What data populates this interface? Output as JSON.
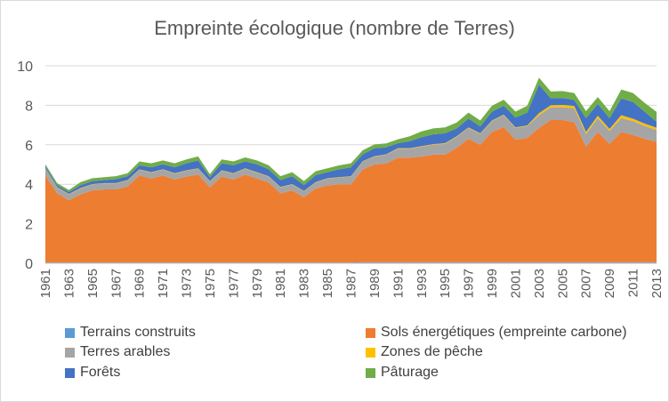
{
  "chart_data": {
    "type": "area",
    "stacked": true,
    "title": "Empreinte écologique (nombre de Terres)",
    "xlabel": "",
    "ylabel": "",
    "ylim": [
      0,
      10
    ],
    "yticks": [
      "0",
      "2",
      "4",
      "6",
      "8",
      "10"
    ],
    "grid": true,
    "legend_position": "bottom",
    "x": [
      1961,
      1962,
      1963,
      1964,
      1965,
      1966,
      1967,
      1968,
      1969,
      1970,
      1971,
      1972,
      1973,
      1974,
      1975,
      1976,
      1977,
      1978,
      1979,
      1980,
      1981,
      1982,
      1983,
      1984,
      1985,
      1986,
      1987,
      1988,
      1989,
      1990,
      1991,
      1992,
      1993,
      1994,
      1995,
      1996,
      1997,
      1998,
      1999,
      2000,
      2001,
      2002,
      2003,
      2004,
      2005,
      2006,
      2007,
      2008,
      2009,
      2010,
      2011,
      2012,
      2013
    ],
    "xtick_labels": [
      "1961",
      "1963",
      "1965",
      "1967",
      "1969",
      "1971",
      "1973",
      "1975",
      "1977",
      "1979",
      "1981",
      "1983",
      "1985",
      "1987",
      "1989",
      "1991",
      "1993",
      "1995",
      "1997",
      "1999",
      "2001",
      "2003",
      "2005",
      "2007",
      "2009",
      "2011",
      "2013"
    ],
    "series": [
      {
        "name": "Terrains construits",
        "color": "#5b9bd5",
        "values": [
          0.04,
          0.04,
          0.04,
          0.04,
          0.04,
          0.04,
          0.04,
          0.04,
          0.04,
          0.04,
          0.04,
          0.04,
          0.04,
          0.04,
          0.04,
          0.04,
          0.04,
          0.04,
          0.04,
          0.04,
          0.04,
          0.04,
          0.04,
          0.04,
          0.04,
          0.04,
          0.04,
          0.05,
          0.05,
          0.05,
          0.05,
          0.05,
          0.05,
          0.05,
          0.05,
          0.05,
          0.05,
          0.05,
          0.05,
          0.05,
          0.05,
          0.05,
          0.05,
          0.05,
          0.05,
          0.05,
          0.05,
          0.05,
          0.05,
          0.05,
          0.05,
          0.05,
          0.05
        ]
      },
      {
        "name": "Sols énergétiques (empreinte carbone)",
        "color": "#ed7d31",
        "values": [
          4.4,
          3.5,
          3.15,
          3.45,
          3.65,
          3.7,
          3.7,
          3.85,
          4.4,
          4.25,
          4.4,
          4.2,
          4.35,
          4.45,
          3.8,
          4.35,
          4.2,
          4.45,
          4.25,
          4.05,
          3.5,
          3.65,
          3.3,
          3.75,
          3.9,
          3.95,
          3.95,
          4.7,
          4.95,
          5.0,
          5.3,
          5.3,
          5.35,
          5.45,
          5.45,
          5.8,
          6.25,
          5.95,
          6.6,
          6.85,
          6.2,
          6.3,
          6.8,
          7.2,
          7.2,
          7.1,
          5.85,
          6.6,
          6.0,
          6.6,
          6.45,
          6.25,
          6.1
        ]
      },
      {
        "name": "Terres arables",
        "color": "#a5a5a5",
        "values": [
          0.35,
          0.3,
          0.3,
          0.3,
          0.3,
          0.3,
          0.3,
          0.3,
          0.3,
          0.3,
          0.3,
          0.3,
          0.3,
          0.3,
          0.3,
          0.3,
          0.3,
          0.3,
          0.3,
          0.3,
          0.3,
          0.3,
          0.3,
          0.3,
          0.35,
          0.35,
          0.4,
          0.4,
          0.4,
          0.45,
          0.45,
          0.45,
          0.5,
          0.5,
          0.55,
          0.55,
          0.55,
          0.55,
          0.55,
          0.6,
          0.6,
          0.6,
          0.65,
          0.65,
          0.65,
          0.7,
          0.65,
          0.7,
          0.65,
          0.7,
          0.7,
          0.65,
          0.6
        ]
      },
      {
        "name": "Zones de pêche",
        "color": "#ffc000",
        "values": [
          0.02,
          0.02,
          0.02,
          0.02,
          0.02,
          0.02,
          0.02,
          0.02,
          0.02,
          0.02,
          0.02,
          0.02,
          0.02,
          0.02,
          0.02,
          0.02,
          0.02,
          0.02,
          0.02,
          0.02,
          0.02,
          0.02,
          0.02,
          0.02,
          0.02,
          0.02,
          0.02,
          0.02,
          0.02,
          0.02,
          0.03,
          0.03,
          0.03,
          0.03,
          0.03,
          0.03,
          0.03,
          0.03,
          0.03,
          0.03,
          0.03,
          0.03,
          0.1,
          0.1,
          0.12,
          0.12,
          0.1,
          0.12,
          0.1,
          0.15,
          0.12,
          0.12,
          0.12
        ]
      },
      {
        "name": "Forêts",
        "color": "#4472c4",
        "values": [
          0.1,
          0.1,
          0.1,
          0.15,
          0.15,
          0.15,
          0.2,
          0.2,
          0.2,
          0.25,
          0.25,
          0.3,
          0.35,
          0.4,
          0.2,
          0.35,
          0.4,
          0.35,
          0.4,
          0.35,
          0.35,
          0.4,
          0.3,
          0.35,
          0.3,
          0.4,
          0.45,
          0.35,
          0.4,
          0.35,
          0.25,
          0.35,
          0.45,
          0.5,
          0.5,
          0.4,
          0.45,
          0.35,
          0.45,
          0.45,
          0.5,
          0.65,
          1.45,
          0.35,
          0.35,
          0.3,
          0.7,
          0.6,
          0.55,
          0.85,
          0.85,
          0.6,
          0.3
        ]
      },
      {
        "name": "Pâturage",
        "color": "#70ad47",
        "values": [
          0.1,
          0.1,
          0.1,
          0.15,
          0.15,
          0.15,
          0.15,
          0.15,
          0.2,
          0.2,
          0.2,
          0.2,
          0.2,
          0.2,
          0.15,
          0.2,
          0.2,
          0.2,
          0.2,
          0.2,
          0.2,
          0.2,
          0.2,
          0.2,
          0.2,
          0.2,
          0.2,
          0.2,
          0.2,
          0.2,
          0.2,
          0.25,
          0.3,
          0.3,
          0.3,
          0.3,
          0.3,
          0.3,
          0.3,
          0.3,
          0.3,
          0.35,
          0.35,
          0.35,
          0.35,
          0.35,
          0.35,
          0.35,
          0.35,
          0.45,
          0.45,
          0.45,
          0.5
        ]
      }
    ]
  }
}
